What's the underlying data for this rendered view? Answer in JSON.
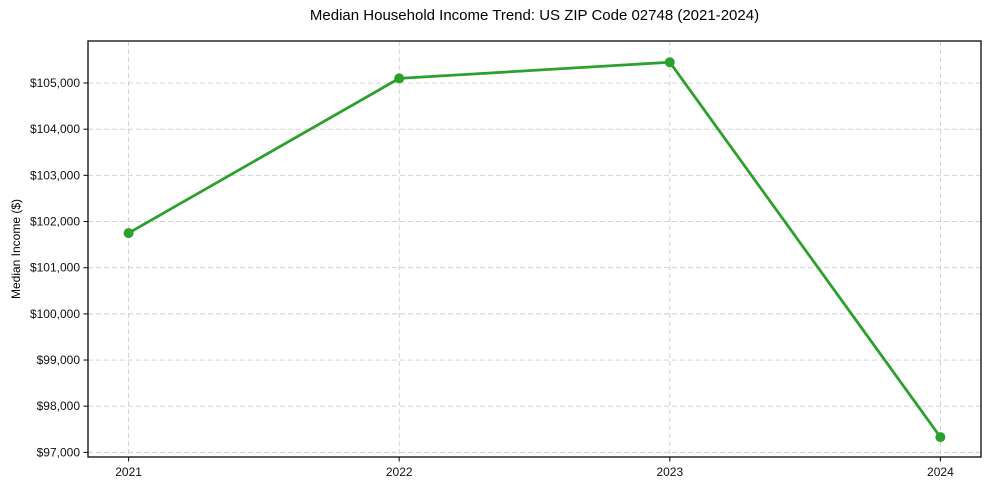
{
  "chart_data": {
    "type": "line",
    "title": "Median Household Income Trend: US ZIP Code 02748 (2021-2024)",
    "xlabel": "",
    "ylabel": "Median Income ($)",
    "x": [
      2021,
      2022,
      2023,
      2024
    ],
    "x_tick_labels": [
      "2021",
      "2022",
      "2023",
      "2024"
    ],
    "series": [
      {
        "name": "Median Household Income",
        "values": [
          101750,
          105100,
          105450,
          97330
        ]
      }
    ],
    "y_ticks": [
      97000,
      98000,
      99000,
      100000,
      101000,
      102000,
      103000,
      104000,
      105000
    ],
    "y_tick_labels": [
      "$97,000",
      "$98,000",
      "$99,000",
      "$100,000",
      "$101,000",
      "$102,000",
      "$103,000",
      "$104,000",
      "$105,000"
    ],
    "xlim": [
      2020.85,
      2024.15
    ],
    "ylim": [
      96900,
      105910
    ],
    "grid": true,
    "legend": false,
    "line_color": "#2ca02c",
    "marker": "circle",
    "marker_size": 5
  },
  "colors": {
    "background": "#ffffff",
    "line": "#2ca02c",
    "grid": "#cccccc",
    "spine": "#1a1a1a",
    "text": "#000000"
  }
}
